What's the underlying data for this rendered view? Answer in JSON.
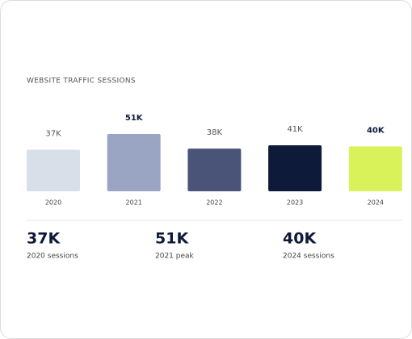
{
  "chart_data": {
    "type": "bar",
    "title": "WEBSITE TRAFFIC SESSIONS",
    "categories": [
      "2020",
      "2021",
      "2022",
      "2023",
      "2024"
    ],
    "values": [
      37000,
      51000,
      38000,
      41000,
      40000
    ],
    "value_labels": [
      "37K",
      "51K",
      "38K",
      "41K",
      "40K"
    ],
    "colors": [
      "#d9dfe9",
      "#9aa5c3",
      "#4a5479",
      "#0e1a3a",
      "#d9f25a"
    ],
    "highlight": [
      1,
      4
    ],
    "ylim": [
      0,
      60000
    ]
  },
  "summary": [
    {
      "value": "37K",
      "label": "2020 sessions"
    },
    {
      "value": "51K",
      "label": "2021 peak"
    },
    {
      "value": "40K",
      "label": "2024 sessions"
    }
  ]
}
